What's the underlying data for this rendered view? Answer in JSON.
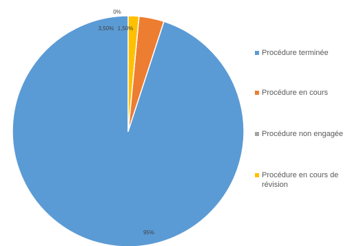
{
  "chart_data": {
    "type": "pie",
    "title": "",
    "slices": [
      {
        "label": "Procédure terminée",
        "value": 95,
        "value_label": "95%",
        "color": "#5B9BD5"
      },
      {
        "label": "Procédure en cours",
        "value": 3.5,
        "value_label": "3,50%",
        "color": "#ED7D31"
      },
      {
        "label": "Procédure non engagée",
        "value": 0,
        "value_label": "0%",
        "color": "#A5A5A5"
      },
      {
        "label": "Procédure en cours de révision",
        "value": 1.5,
        "value_label": "1,50%",
        "color": "#FFC000"
      }
    ],
    "legend_position": "right"
  }
}
